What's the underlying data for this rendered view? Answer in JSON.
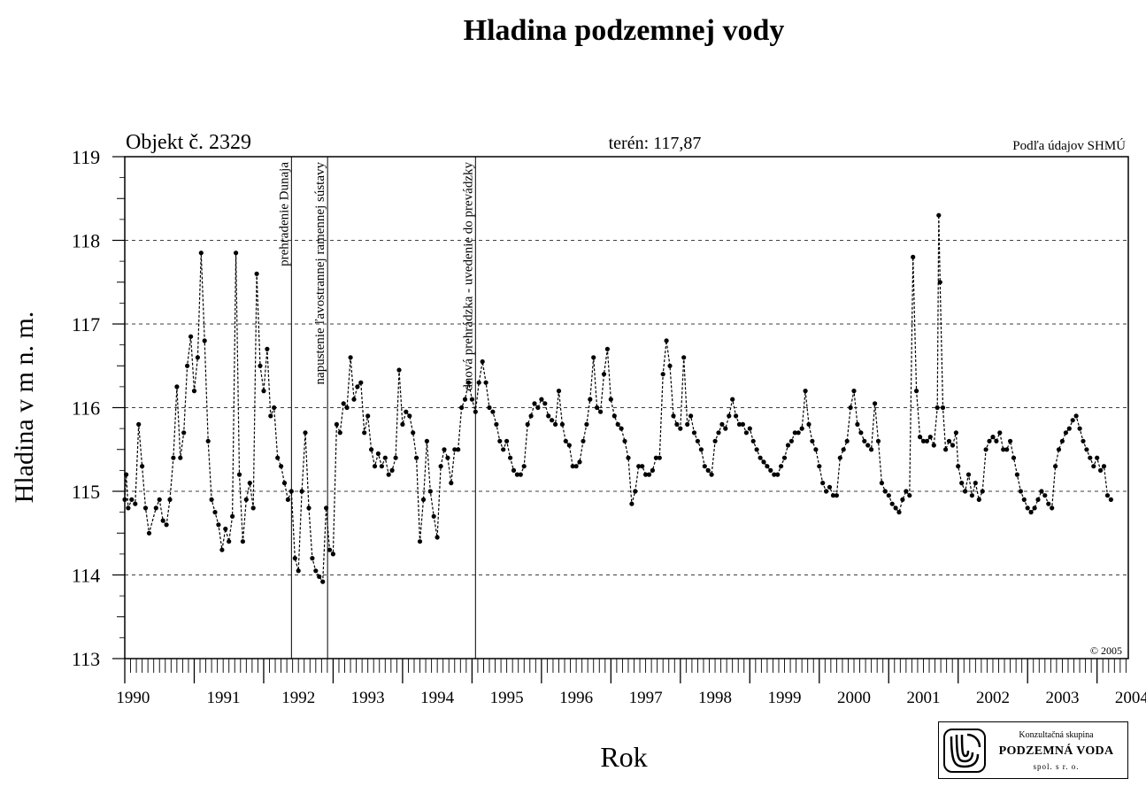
{
  "chart_data": {
    "type": "line",
    "title": "Hladina podzemnej vody",
    "object_label": "Objekt č. 2329",
    "terrain_label": "terén: 117,87",
    "source_label": "Podľa údajov SHMÚ",
    "copyright": "© 2005",
    "xlabel": "Rok",
    "ylabel": "Hladina v m n. m.",
    "ylim": [
      113,
      119
    ],
    "xlim": [
      1990,
      2004.45
    ],
    "y_ticks": [
      113,
      114,
      115,
      116,
      117,
      118,
      119
    ],
    "x_tick_labels": [
      "1990",
      "1991",
      "1992",
      "1993",
      "1994",
      "1995",
      "1996",
      "1997",
      "1998",
      "1999",
      "2000",
      "2001",
      "2002",
      "2003",
      "2004"
    ],
    "grid": "horizontal dashed",
    "events": [
      {
        "x": 1992.4,
        "label": "prehradenie Dunaja"
      },
      {
        "x": 1992.92,
        "label": "napustenie ľavostrannej ramennej sústavy"
      },
      {
        "x": 1995.05,
        "label": "dnová prehrádzka - uvedenie do prevádzky"
      }
    ],
    "series": [
      {
        "values": [
          [
            1990.0,
            114.9
          ],
          [
            1990.02,
            115.2
          ],
          [
            1990.05,
            114.8
          ],
          [
            1990.1,
            114.9
          ],
          [
            1990.15,
            114.85
          ],
          [
            1990.2,
            115.8
          ],
          [
            1990.25,
            115.3
          ],
          [
            1990.3,
            114.8
          ],
          [
            1990.35,
            114.5
          ],
          [
            1990.45,
            114.8
          ],
          [
            1990.5,
            114.9
          ],
          [
            1990.55,
            114.65
          ],
          [
            1990.6,
            114.6
          ],
          [
            1990.65,
            114.9
          ],
          [
            1990.7,
            115.4
          ],
          [
            1990.75,
            116.25
          ],
          [
            1990.8,
            115.4
          ],
          [
            1990.85,
            115.7
          ],
          [
            1990.9,
            116.5
          ],
          [
            1990.95,
            116.85
          ],
          [
            1991.0,
            116.2
          ],
          [
            1991.05,
            116.6
          ],
          [
            1991.1,
            117.85
          ],
          [
            1991.15,
            116.8
          ],
          [
            1991.2,
            115.6
          ],
          [
            1991.25,
            114.9
          ],
          [
            1991.3,
            114.75
          ],
          [
            1991.35,
            114.6
          ],
          [
            1991.4,
            114.3
          ],
          [
            1991.45,
            114.55
          ],
          [
            1991.5,
            114.4
          ],
          [
            1991.55,
            114.7
          ],
          [
            1991.6,
            117.85
          ],
          [
            1991.65,
            115.2
          ],
          [
            1991.7,
            114.4
          ],
          [
            1991.75,
            114.9
          ],
          [
            1991.8,
            115.1
          ],
          [
            1991.85,
            114.8
          ],
          [
            1991.9,
            117.6
          ],
          [
            1991.95,
            116.5
          ],
          [
            1992.0,
            116.2
          ],
          [
            1992.05,
            116.7
          ],
          [
            1992.1,
            115.9
          ],
          [
            1992.15,
            116.0
          ],
          [
            1992.2,
            115.4
          ],
          [
            1992.25,
            115.3
          ],
          [
            1992.3,
            115.1
          ],
          [
            1992.35,
            114.9
          ],
          [
            1992.4,
            115.0
          ],
          [
            1992.45,
            114.2
          ],
          [
            1992.5,
            114.05
          ],
          [
            1992.55,
            115.0
          ],
          [
            1992.6,
            115.7
          ],
          [
            1992.65,
            114.8
          ],
          [
            1992.7,
            114.2
          ],
          [
            1992.75,
            114.05
          ],
          [
            1992.8,
            113.98
          ],
          [
            1992.85,
            113.92
          ],
          [
            1992.9,
            114.8
          ],
          [
            1992.95,
            114.3
          ],
          [
            1993.0,
            114.25
          ],
          [
            1993.05,
            115.8
          ],
          [
            1993.1,
            115.7
          ],
          [
            1993.15,
            116.05
          ],
          [
            1993.2,
            116.0
          ],
          [
            1993.25,
            116.6
          ],
          [
            1993.3,
            116.1
          ],
          [
            1993.35,
            116.25
          ],
          [
            1993.4,
            116.3
          ],
          [
            1993.45,
            115.7
          ],
          [
            1993.5,
            115.9
          ],
          [
            1993.55,
            115.5
          ],
          [
            1993.6,
            115.3
          ],
          [
            1993.65,
            115.45
          ],
          [
            1993.7,
            115.3
          ],
          [
            1993.75,
            115.4
          ],
          [
            1993.8,
            115.2
          ],
          [
            1993.85,
            115.25
          ],
          [
            1993.9,
            115.4
          ],
          [
            1993.95,
            116.45
          ],
          [
            1994.0,
            115.8
          ],
          [
            1994.05,
            115.95
          ],
          [
            1994.1,
            115.9
          ],
          [
            1994.15,
            115.7
          ],
          [
            1994.2,
            115.4
          ],
          [
            1994.25,
            114.4
          ],
          [
            1994.3,
            114.9
          ],
          [
            1994.35,
            115.6
          ],
          [
            1994.4,
            115.0
          ],
          [
            1994.45,
            114.7
          ],
          [
            1994.5,
            114.45
          ],
          [
            1994.55,
            115.3
          ],
          [
            1994.6,
            115.5
          ],
          [
            1994.65,
            115.4
          ],
          [
            1994.7,
            115.1
          ],
          [
            1994.75,
            115.5
          ],
          [
            1994.8,
            115.5
          ],
          [
            1994.85,
            116.0
          ],
          [
            1994.9,
            116.1
          ],
          [
            1994.95,
            116.3
          ],
          [
            1995.0,
            116.1
          ],
          [
            1995.05,
            115.95
          ],
          [
            1995.1,
            116.3
          ],
          [
            1995.15,
            116.55
          ],
          [
            1995.2,
            116.3
          ],
          [
            1995.25,
            116.0
          ],
          [
            1995.3,
            115.95
          ],
          [
            1995.35,
            115.8
          ],
          [
            1995.4,
            115.6
          ],
          [
            1995.45,
            115.5
          ],
          [
            1995.5,
            115.6
          ],
          [
            1995.55,
            115.4
          ],
          [
            1995.6,
            115.25
          ],
          [
            1995.65,
            115.2
          ],
          [
            1995.7,
            115.2
          ],
          [
            1995.75,
            115.3
          ],
          [
            1995.8,
            115.8
          ],
          [
            1995.85,
            115.9
          ],
          [
            1995.9,
            116.05
          ],
          [
            1995.95,
            116.0
          ],
          [
            1996.0,
            116.1
          ],
          [
            1996.05,
            116.05
          ],
          [
            1996.1,
            115.9
          ],
          [
            1996.15,
            115.85
          ],
          [
            1996.2,
            115.8
          ],
          [
            1996.25,
            116.2
          ],
          [
            1996.3,
            115.8
          ],
          [
            1996.35,
            115.6
          ],
          [
            1996.4,
            115.55
          ],
          [
            1996.45,
            115.3
          ],
          [
            1996.5,
            115.3
          ],
          [
            1996.55,
            115.35
          ],
          [
            1996.6,
            115.6
          ],
          [
            1996.65,
            115.8
          ],
          [
            1996.7,
            116.1
          ],
          [
            1996.75,
            116.6
          ],
          [
            1996.8,
            116.0
          ],
          [
            1996.85,
            115.95
          ],
          [
            1996.9,
            116.4
          ],
          [
            1996.95,
            116.7
          ],
          [
            1997.0,
            116.1
          ],
          [
            1997.05,
            115.9
          ],
          [
            1997.1,
            115.8
          ],
          [
            1997.15,
            115.75
          ],
          [
            1997.2,
            115.6
          ],
          [
            1997.25,
            115.4
          ],
          [
            1997.3,
            114.85
          ],
          [
            1997.35,
            115.0
          ],
          [
            1997.4,
            115.3
          ],
          [
            1997.45,
            115.3
          ],
          [
            1997.5,
            115.2
          ],
          [
            1997.55,
            115.2
          ],
          [
            1997.6,
            115.25
          ],
          [
            1997.65,
            115.4
          ],
          [
            1997.7,
            115.4
          ],
          [
            1997.75,
            116.4
          ],
          [
            1997.8,
            116.8
          ],
          [
            1997.85,
            116.5
          ],
          [
            1997.9,
            115.9
          ],
          [
            1997.95,
            115.8
          ],
          [
            1998.0,
            115.75
          ],
          [
            1998.05,
            116.6
          ],
          [
            1998.1,
            115.8
          ],
          [
            1998.15,
            115.9
          ],
          [
            1998.2,
            115.7
          ],
          [
            1998.25,
            115.6
          ],
          [
            1998.3,
            115.5
          ],
          [
            1998.35,
            115.3
          ],
          [
            1998.4,
            115.25
          ],
          [
            1998.45,
            115.2
          ],
          [
            1998.5,
            115.6
          ],
          [
            1998.55,
            115.7
          ],
          [
            1998.6,
            115.8
          ],
          [
            1998.65,
            115.75
          ],
          [
            1998.7,
            115.9
          ],
          [
            1998.75,
            116.1
          ],
          [
            1998.8,
            115.9
          ],
          [
            1998.85,
            115.8
          ],
          [
            1998.9,
            115.8
          ],
          [
            1998.95,
            115.7
          ],
          [
            1999.0,
            115.75
          ],
          [
            1999.05,
            115.6
          ],
          [
            1999.1,
            115.5
          ],
          [
            1999.15,
            115.4
          ],
          [
            1999.2,
            115.35
          ],
          [
            1999.25,
            115.3
          ],
          [
            1999.3,
            115.25
          ],
          [
            1999.35,
            115.2
          ],
          [
            1999.4,
            115.2
          ],
          [
            1999.45,
            115.3
          ],
          [
            1999.5,
            115.4
          ],
          [
            1999.55,
            115.55
          ],
          [
            1999.6,
            115.6
          ],
          [
            1999.65,
            115.7
          ],
          [
            1999.7,
            115.7
          ],
          [
            1999.75,
            115.75
          ],
          [
            1999.8,
            116.2
          ],
          [
            1999.85,
            115.8
          ],
          [
            1999.9,
            115.6
          ],
          [
            1999.95,
            115.5
          ],
          [
            2000.0,
            115.3
          ],
          [
            2000.05,
            115.1
          ],
          [
            2000.1,
            115.0
          ],
          [
            2000.15,
            115.05
          ],
          [
            2000.2,
            114.95
          ],
          [
            2000.25,
            114.95
          ],
          [
            2000.3,
            115.4
          ],
          [
            2000.35,
            115.5
          ],
          [
            2000.4,
            115.6
          ],
          [
            2000.45,
            116.0
          ],
          [
            2000.5,
            116.2
          ],
          [
            2000.55,
            115.8
          ],
          [
            2000.6,
            115.7
          ],
          [
            2000.65,
            115.6
          ],
          [
            2000.7,
            115.55
          ],
          [
            2000.75,
            115.5
          ],
          [
            2000.8,
            116.05
          ],
          [
            2000.85,
            115.6
          ],
          [
            2000.9,
            115.1
          ],
          [
            2000.95,
            115.0
          ],
          [
            2001.0,
            114.95
          ],
          [
            2001.05,
            114.85
          ],
          [
            2001.1,
            114.8
          ],
          [
            2001.15,
            114.75
          ],
          [
            2001.2,
            114.9
          ],
          [
            2001.25,
            115.0
          ],
          [
            2001.3,
            114.95
          ],
          [
            2001.35,
            117.8
          ],
          [
            2001.4,
            116.2
          ],
          [
            2001.45,
            115.65
          ],
          [
            2001.5,
            115.6
          ],
          [
            2001.55,
            115.6
          ],
          [
            2001.6,
            115.65
          ],
          [
            2001.65,
            115.55
          ],
          [
            2001.7,
            116.0
          ],
          [
            2001.72,
            118.3
          ],
          [
            2001.74,
            117.5
          ],
          [
            2001.78,
            116.0
          ],
          [
            2001.82,
            115.5
          ],
          [
            2001.87,
            115.6
          ],
          [
            2001.92,
            115.55
          ],
          [
            2001.97,
            115.7
          ],
          [
            2002.0,
            115.3
          ],
          [
            2002.05,
            115.1
          ],
          [
            2002.1,
            115.0
          ],
          [
            2002.15,
            115.2
          ],
          [
            2002.2,
            114.95
          ],
          [
            2002.25,
            115.1
          ],
          [
            2002.3,
            114.9
          ],
          [
            2002.35,
            115.0
          ],
          [
            2002.4,
            115.5
          ],
          [
            2002.45,
            115.6
          ],
          [
            2002.5,
            115.65
          ],
          [
            2002.55,
            115.6
          ],
          [
            2002.6,
            115.7
          ],
          [
            2002.65,
            115.5
          ],
          [
            2002.7,
            115.5
          ],
          [
            2002.75,
            115.6
          ],
          [
            2002.8,
            115.4
          ],
          [
            2002.85,
            115.2
          ],
          [
            2002.9,
            115.0
          ],
          [
            2002.95,
            114.9
          ],
          [
            2003.0,
            114.8
          ],
          [
            2003.05,
            114.75
          ],
          [
            2003.1,
            114.8
          ],
          [
            2003.15,
            114.9
          ],
          [
            2003.2,
            115.0
          ],
          [
            2003.25,
            114.95
          ],
          [
            2003.3,
            114.85
          ],
          [
            2003.35,
            114.8
          ],
          [
            2003.4,
            115.3
          ],
          [
            2003.45,
            115.5
          ],
          [
            2003.5,
            115.6
          ],
          [
            2003.55,
            115.7
          ],
          [
            2003.6,
            115.75
          ],
          [
            2003.65,
            115.85
          ],
          [
            2003.7,
            115.9
          ],
          [
            2003.75,
            115.75
          ],
          [
            2003.8,
            115.6
          ],
          [
            2003.85,
            115.5
          ],
          [
            2003.9,
            115.4
          ],
          [
            2003.95,
            115.3
          ],
          [
            2004.0,
            115.4
          ],
          [
            2004.05,
            115.25
          ],
          [
            2004.1,
            115.3
          ],
          [
            2004.15,
            114.95
          ],
          [
            2004.2,
            114.9
          ]
        ]
      }
    ]
  },
  "logo": {
    "line1": "Konzultačná skupina",
    "line2": "PODZEMNÁ VODA",
    "line3": "spol. s r. o."
  }
}
